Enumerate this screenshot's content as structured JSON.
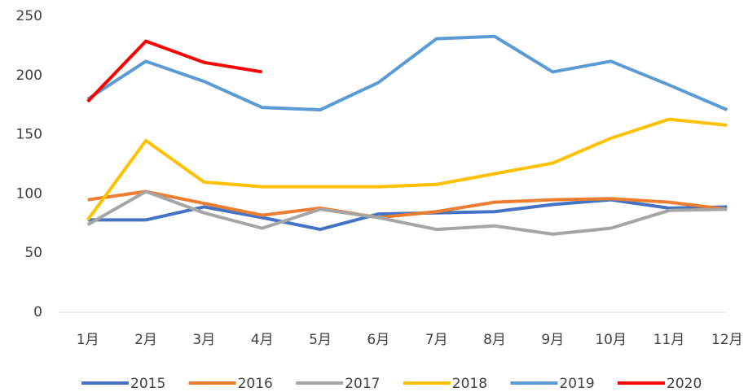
{
  "chart_data": {
    "type": "line",
    "categories": [
      "1月",
      "2月",
      "3月",
      "4月",
      "5月",
      "6月",
      "7月",
      "8月",
      "9月",
      "10月",
      "11月",
      "12月"
    ],
    "series": [
      {
        "name": "2015",
        "color": "#4472c4",
        "values": [
          78,
          78,
          89,
          80,
          70,
          83,
          84,
          85,
          91,
          95,
          88,
          89
        ]
      },
      {
        "name": "2016",
        "color": "#ed7d31",
        "values": [
          95,
          102,
          92,
          82,
          88,
          80,
          85,
          93,
          95,
          96,
          93,
          87
        ]
      },
      {
        "name": "2017",
        "color": "#a5a5a5",
        "values": [
          74,
          102,
          84,
          71,
          87,
          80,
          70,
          73,
          66,
          71,
          86,
          87
        ]
      },
      {
        "name": "2018",
        "color": "#ffc000",
        "values": [
          78,
          145,
          110,
          106,
          106,
          106,
          108,
          117,
          126,
          147,
          163,
          158
        ]
      },
      {
        "name": "2019",
        "color": "#5b9bd5",
        "values": [
          180,
          212,
          195,
          173,
          171,
          194,
          231,
          233,
          203,
          212,
          192,
          171
        ]
      },
      {
        "name": "2020",
        "color": "#ff0000",
        "values": [
          178,
          229,
          211,
          203,
          null,
          null,
          null,
          null,
          null,
          null,
          null,
          null
        ]
      }
    ],
    "ylim": [
      0,
      250
    ],
    "yticks": [
      0,
      50,
      100,
      150,
      200,
      250
    ],
    "grid": false,
    "legend": "bottom"
  }
}
